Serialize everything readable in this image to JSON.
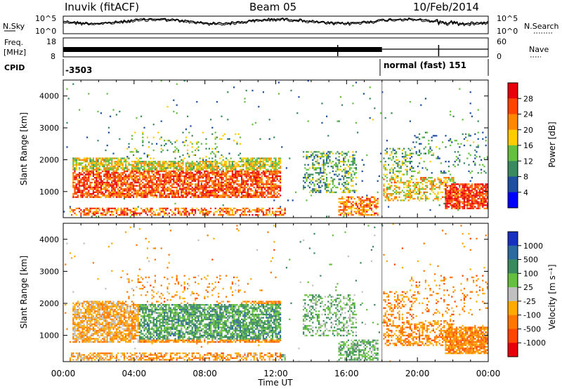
{
  "header": {
    "station": "Inuvik (fitACF)",
    "beam": "Beam 05",
    "date": "10/Feb/2014"
  },
  "strip_panels": {
    "noise_left_label": "N.Sky",
    "noise_right_label": "N.Search",
    "noise_left_ticks": [
      "10^5",
      "10^0"
    ],
    "noise_right_ticks": [
      "10^5",
      "10^0"
    ],
    "freq_label_top": "Freq.",
    "freq_label_unit": "[MHz]",
    "freq_left_ticks": [
      "18",
      "8"
    ],
    "nave_label": "Nave",
    "nave_right_ticks": [
      "60",
      "0"
    ],
    "cpid_label": "CPID",
    "cpid_first": "-3503",
    "cpid_second": "normal (fast) 151"
  },
  "colorbars": {
    "power": {
      "label": "Power [dB]",
      "ticks": [
        "28",
        "24",
        "20",
        "16",
        "12",
        "8",
        "4"
      ],
      "colors": [
        "#e8000a",
        "#ff4500",
        "#ff8800",
        "#ffcc00",
        "#66c040",
        "#3a8a60",
        "#1f4fa0",
        "#0000ff"
      ]
    },
    "velocity": {
      "label": "Velocity [m s⁻¹]",
      "ticks": [
        "1000",
        "500",
        "100",
        "25",
        "-25",
        "-100",
        "-500",
        "-1000"
      ],
      "colors": [
        "#1830c0",
        "#2a6aa0",
        "#3a8a60",
        "#66c040",
        "#c0c0c0",
        "#ffaa00",
        "#ff7700",
        "#ff4500",
        "#e8000a"
      ]
    }
  },
  "chart_data": [
    {
      "type": "heatmap",
      "title": "Power",
      "ylabel": "Slant Range [km]",
      "xlabel": "Time UT",
      "x_ticks": [
        "00:00",
        "04:00",
        "08:00",
        "12:00",
        "16:00",
        "20:00",
        "00:00"
      ],
      "y_ticks": [
        "1000",
        "2000",
        "3000",
        "4000"
      ],
      "ylim": [
        180,
        4500
      ],
      "xlim_hours": [
        0,
        24
      ]
    },
    {
      "type": "heatmap",
      "title": "Velocity",
      "ylabel": "Slant Range [km]",
      "xlabel": "Time UT",
      "x_ticks": [
        "00:00",
        "04:00",
        "08:00",
        "12:00",
        "16:00",
        "20:00",
        "00:00"
      ],
      "y_ticks": [
        "1000",
        "2000",
        "3000",
        "4000"
      ],
      "ylim": [
        180,
        4500
      ],
      "xlim_hours": [
        0,
        24
      ]
    }
  ]
}
